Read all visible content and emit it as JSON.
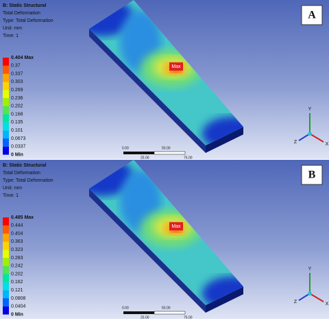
{
  "panels": [
    {
      "letter": "A",
      "header": [
        "B: Static Structural",
        "Total Deformation",
        "Type: Total Deformation",
        "Unit: mm",
        "Time: 1"
      ],
      "legend": [
        "0.404 Max",
        "0.37",
        "0.337",
        "0.303",
        "0.269",
        "0.236",
        "0.202",
        "0.168",
        "0.135",
        "0.101",
        "0.0673",
        "0.0337",
        "0 Min"
      ],
      "max_marker": "Max",
      "scale": [
        "0.00",
        "25.00",
        "50.00",
        "75.00"
      ],
      "axes": [
        "Y",
        "X",
        "Z"
      ]
    },
    {
      "letter": "B",
      "header": [
        "B: Static Structural",
        "Total Deformation",
        "Type: Total Deformation",
        "Unit: mm",
        "Time: 1"
      ],
      "legend": [
        "0.485 Max",
        "0.444",
        "0.404",
        "0.363",
        "0.323",
        "0.283",
        "0.242",
        "0.202",
        "0.162",
        "0.121",
        "0.0808",
        "0.0404",
        "0 Min"
      ],
      "max_marker": "Max",
      "scale": [
        "0.00",
        "25.00",
        "50.00",
        "75.00"
      ],
      "axes": [
        "Y",
        "X",
        "Z"
      ]
    }
  ]
}
